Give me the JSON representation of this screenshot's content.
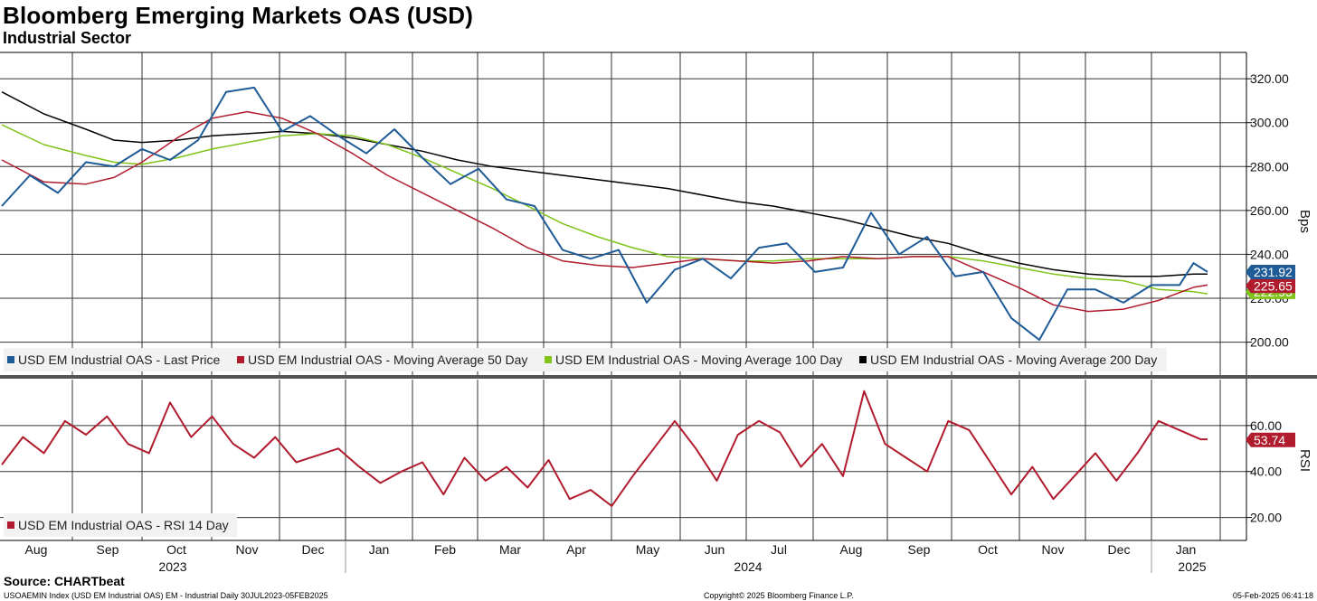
{
  "header": {
    "title": "Bloomberg Emerging Markets OAS (USD)",
    "subtitle": "Industrial Sector"
  },
  "footer": {
    "source": "Source: CHARTbeat",
    "index_info": "USOAEMIN Index (USD EM Industrial OAS) EM - Industrial  Daily 30JUL2023-05FEB2025",
    "copyright": "Copyright© 2025 Bloomberg Finance L.P.",
    "timestamp": "05-Feb-2025 06:41:18"
  },
  "colors": {
    "last_price": "#1f5b97",
    "ma50": "#b01c2e",
    "ma100": "#7fc31c",
    "ma200": "#000000",
    "rsi": "#b01c2e"
  },
  "chart_data": [
    {
      "type": "line",
      "name": "top-panel",
      "ylabel": "Bps",
      "ylim": [
        185,
        332
      ],
      "yticks": [
        200,
        220,
        240,
        260,
        280,
        300,
        320
      ],
      "ytick_labels": [
        "200.00",
        "220.00",
        "240.00",
        "260.00",
        "280.00",
        "300.00",
        "320.00"
      ],
      "x_months": [
        "Aug",
        "Sep",
        "Oct",
        "Nov",
        "Dec",
        "Jan",
        "Feb",
        "Mar",
        "Apr",
        "May",
        "Jun",
        "Jul",
        "Aug",
        "Sep",
        "Oct",
        "Nov",
        "Dec",
        "Jan"
      ],
      "x_years": [
        "2023",
        "2024",
        "2025"
      ],
      "legend": [
        "USD EM Industrial OAS - Last Price",
        "USD EM Industrial OAS - Moving Average 50 Day",
        "USD EM Industrial OAS - Moving Average 100 Day",
        "USD EM Industrial OAS - Moving Average 200 Day"
      ],
      "end_tags": [
        {
          "label": "231.92",
          "value": 231.92,
          "series": "last_price"
        },
        {
          "label": "225.65",
          "value": 225.65,
          "series": "ma50"
        },
        {
          "label": "222.93",
          "value": 222.93,
          "series": "ma100"
        }
      ],
      "series": [
        {
          "name": "USD EM Industrial OAS - Last Price",
          "key": "last_price",
          "x": [
            0,
            0.4,
            0.8,
            1.2,
            1.6,
            2,
            2.4,
            2.8,
            3.2,
            3.6,
            4,
            4.4,
            4.8,
            5.2,
            5.6,
            6,
            6.4,
            6.8,
            7.2,
            7.6,
            8,
            8.4,
            8.8,
            9.2,
            9.6,
            10,
            10.4,
            10.8,
            11.2,
            11.6,
            12,
            12.4,
            12.8,
            13.2,
            13.6,
            14,
            14.4,
            14.8,
            15.2,
            15.6,
            16,
            16.4,
            16.8,
            17,
            17.2
          ],
          "values": [
            262,
            276,
            268,
            282,
            280,
            288,
            283,
            292,
            314,
            316,
            296,
            303,
            294,
            286,
            297,
            284,
            272,
            279,
            265,
            262,
            242,
            238,
            242,
            218,
            233,
            238,
            229,
            243,
            245,
            232,
            234,
            259,
            240,
            248,
            230,
            232,
            211,
            201,
            224,
            224,
            218,
            226,
            226,
            236,
            232
          ]
        },
        {
          "name": "USD EM Industrial OAS - Moving Average 50 Day",
          "key": "ma50",
          "x": [
            0,
            0.6,
            1.2,
            1.6,
            2,
            2.5,
            3,
            3.5,
            4,
            4.5,
            5,
            5.5,
            6,
            6.5,
            7,
            7.5,
            8,
            8.5,
            9,
            9.5,
            10,
            10.5,
            11,
            11.5,
            12,
            12.5,
            13,
            13.5,
            14,
            14.5,
            15,
            15.5,
            16,
            16.5,
            17,
            17.2
          ],
          "values": [
            283,
            273,
            272,
            275,
            282,
            293,
            302,
            305,
            302,
            295,
            286,
            276,
            268,
            260,
            252,
            243,
            237,
            235,
            234,
            236,
            238,
            237,
            236,
            237,
            239,
            238,
            239,
            239,
            232,
            225,
            217,
            214,
            215,
            219,
            225,
            226
          ]
        },
        {
          "name": "USD EM Industrial OAS - Moving Average 100 Day",
          "key": "ma100",
          "x": [
            0,
            0.6,
            1.2,
            1.6,
            2,
            2.5,
            3,
            3.5,
            4,
            4.5,
            5,
            5.5,
            6,
            6.5,
            7,
            7.5,
            8,
            8.5,
            9,
            9.5,
            10,
            10.5,
            11,
            11.5,
            12,
            12.5,
            13,
            13.5,
            14,
            14.5,
            15,
            15.5,
            16,
            16.5,
            17,
            17.2
          ],
          "values": [
            299,
            290,
            285,
            282,
            281,
            284,
            288,
            291,
            294,
            295,
            294,
            290,
            284,
            277,
            270,
            262,
            254,
            248,
            243,
            239,
            238,
            237,
            237,
            238,
            238,
            238,
            239,
            239,
            237,
            234,
            231,
            229,
            228,
            224,
            223,
            222
          ]
        },
        {
          "name": "USD EM Industrial OAS - Moving Average 200 Day",
          "key": "ma200",
          "x": [
            0,
            0.6,
            1.2,
            1.6,
            2,
            2.5,
            3,
            3.5,
            4,
            4.5,
            5,
            5.5,
            6,
            6.5,
            7,
            7.5,
            8,
            8.5,
            9,
            9.5,
            10,
            10.5,
            11,
            11.5,
            12,
            12.5,
            13,
            13.5,
            14,
            14.5,
            15,
            15.5,
            16,
            16.5,
            17,
            17.2
          ],
          "values": [
            314,
            304,
            297,
            292,
            291,
            292,
            294,
            295,
            296,
            295,
            293,
            290,
            287,
            283,
            280,
            278,
            276,
            274,
            272,
            270,
            267,
            264,
            262,
            259,
            256,
            252,
            248,
            245,
            240,
            236,
            233,
            231,
            230,
            230,
            231,
            231
          ]
        }
      ]
    },
    {
      "type": "line",
      "name": "rsi-panel",
      "ylabel": "RSI",
      "ylim": [
        10,
        80
      ],
      "yticks": [
        20,
        40,
        60
      ],
      "ytick_labels": [
        "20.00",
        "40.00",
        "60.00"
      ],
      "legend": [
        "USD EM Industrial OAS - RSI 14 Day"
      ],
      "end_tags": [
        {
          "label": "53.74",
          "value": 53.74,
          "series": "rsi"
        }
      ],
      "series": [
        {
          "name": "USD EM Industrial OAS - RSI 14 Day",
          "key": "rsi",
          "x": [
            0,
            0.3,
            0.6,
            0.9,
            1.2,
            1.5,
            1.8,
            2.1,
            2.4,
            2.7,
            3,
            3.3,
            3.6,
            3.9,
            4.2,
            4.5,
            4.8,
            5.1,
            5.4,
            5.7,
            6,
            6.3,
            6.6,
            6.9,
            7.2,
            7.5,
            7.8,
            8.1,
            8.4,
            8.7,
            9,
            9.3,
            9.6,
            9.9,
            10.2,
            10.5,
            10.8,
            11.1,
            11.4,
            11.7,
            12,
            12.3,
            12.6,
            12.9,
            13.2,
            13.5,
            13.8,
            14.1,
            14.4,
            14.7,
            15,
            15.3,
            15.6,
            15.9,
            16.2,
            16.5,
            16.8,
            17.1,
            17.2
          ],
          "values": [
            43,
            55,
            48,
            62,
            56,
            64,
            52,
            48,
            70,
            55,
            64,
            52,
            46,
            55,
            44,
            47,
            50,
            42,
            35,
            40,
            44,
            30,
            46,
            36,
            42,
            33,
            45,
            28,
            32,
            25,
            38,
            50,
            62,
            50,
            36,
            56,
            62,
            57,
            42,
            52,
            38,
            75,
            52,
            46,
            40,
            62,
            58,
            44,
            30,
            42,
            28,
            38,
            48,
            36,
            48,
            62,
            58,
            54,
            54
          ]
        }
      ]
    }
  ]
}
